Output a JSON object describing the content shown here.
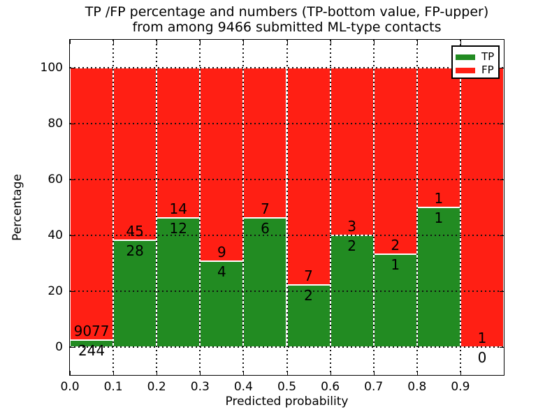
{
  "title": {
    "line1": "TP /FP percentage and numbers (TP-bottom value, FP-upper)",
    "line2": "from among 9466 submitted ML-type contacts"
  },
  "axes": {
    "xlabel": "Predicted probability",
    "ylabel": "Percentage",
    "xtick_labels": [
      "0.0",
      "0.1",
      "0.2",
      "0.3",
      "0.4",
      "0.5",
      "0.6",
      "0.7",
      "0.8",
      "0.9"
    ],
    "ytick_labels": [
      "0",
      "20",
      "40",
      "60",
      "80",
      "100"
    ],
    "ytick_values": [
      0,
      20,
      40,
      60,
      80,
      100
    ],
    "grid_style": "dotted"
  },
  "legend": {
    "position": "upper right",
    "items": [
      {
        "label": "TP",
        "color": "#228b22"
      },
      {
        "label": "FP",
        "color": "#ff1f14"
      }
    ]
  },
  "chart_data": {
    "type": "bar",
    "stacked": true,
    "normalized": "each bin scaled to 100%, green = TP share, red = FP share",
    "title": "TP /FP percentage and numbers (TP-bottom value, FP-upper) from among 9466 submitted ML-type contacts",
    "xlabel": "Predicted probability",
    "ylabel": "Percentage",
    "bin_edges": [
      0.0,
      0.1,
      0.2,
      0.3,
      0.4,
      0.5,
      0.6,
      0.7,
      0.8,
      0.9,
      1.0
    ],
    "series": [
      {
        "name": "TP",
        "color": "#228b22",
        "counts": [
          244,
          28,
          12,
          4,
          6,
          2,
          2,
          1,
          1,
          0
        ]
      },
      {
        "name": "FP",
        "color": "#ff1f14",
        "counts": [
          9077,
          45,
          14,
          9,
          7,
          7,
          3,
          2,
          1,
          1
        ]
      }
    ],
    "tp_percent_per_bin": [
      2.62,
      38.36,
      46.15,
      30.77,
      46.15,
      22.22,
      40.0,
      33.33,
      50.0,
      0.0
    ],
    "total_submitted": 9466,
    "xlim": [
      0,
      1
    ],
    "ylim": [
      -10,
      110
    ],
    "legend_position": "upper right",
    "grid": "dotted"
  }
}
